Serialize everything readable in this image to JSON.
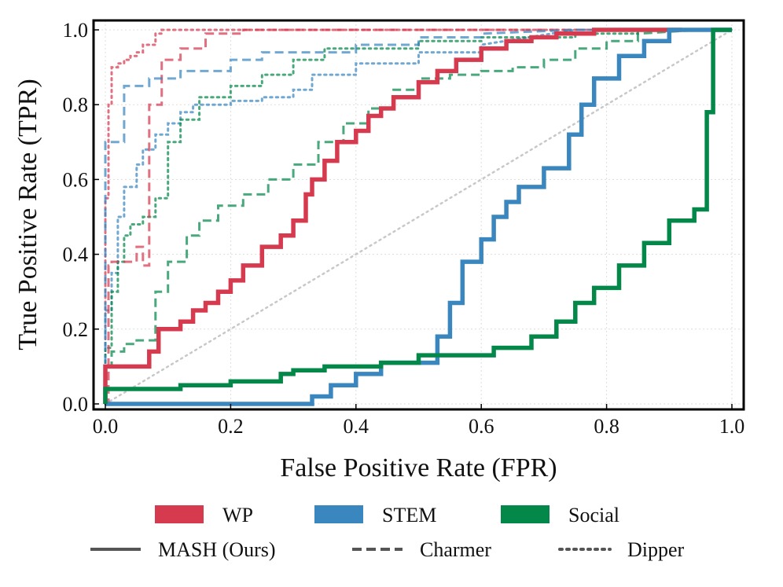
{
  "chart_data": {
    "type": "line",
    "xlabel": "False Positive Rate (FPR)",
    "ylabel": "True Positive Rate (TPR)",
    "xlim": [
      0.0,
      1.0
    ],
    "ylim": [
      0.0,
      1.0
    ],
    "xticks": [
      "0.0",
      "0.2",
      "0.4",
      "0.6",
      "0.8",
      "1.0"
    ],
    "yticks": [
      "0.0",
      "0.2",
      "0.4",
      "0.6",
      "0.8",
      "1.0"
    ],
    "grid": true,
    "legend_position": "bottom",
    "colors": {
      "WP": "#d63a4f",
      "STEM": "#3a87c0",
      "Social": "#04884a",
      "diagonal": "#c8c8c8",
      "linestyle_key": "#555555"
    },
    "legend": {
      "datasets": [
        "WP",
        "STEM",
        "Social"
      ],
      "methods": [
        "MASH (Ours)",
        "Charmer",
        "Dipper"
      ]
    },
    "series": [
      {
        "name": "WP — MASH (Ours)",
        "dataset": "WP",
        "method": "MASH (Ours)",
        "x": [
          0,
          0,
          0.07,
          0.07,
          0.085,
          0.085,
          0.12,
          0.12,
          0.14,
          0.14,
          0.16,
          0.16,
          0.18,
          0.18,
          0.2,
          0.2,
          0.22,
          0.22,
          0.25,
          0.25,
          0.28,
          0.28,
          0.3,
          0.3,
          0.32,
          0.32,
          0.33,
          0.33,
          0.35,
          0.35,
          0.37,
          0.37,
          0.4,
          0.4,
          0.42,
          0.42,
          0.44,
          0.44,
          0.46,
          0.46,
          0.5,
          0.5,
          0.53,
          0.53,
          0.56,
          0.56,
          0.6,
          0.6,
          0.64,
          0.64,
          0.68,
          0.68,
          0.72,
          0.72,
          0.78,
          0.78,
          0.92
        ],
        "y": [
          0,
          0.1,
          0.1,
          0.14,
          0.14,
          0.2,
          0.2,
          0.22,
          0.22,
          0.25,
          0.25,
          0.27,
          0.27,
          0.3,
          0.3,
          0.33,
          0.33,
          0.37,
          0.37,
          0.42,
          0.42,
          0.45,
          0.45,
          0.49,
          0.49,
          0.56,
          0.56,
          0.6,
          0.6,
          0.65,
          0.65,
          0.7,
          0.7,
          0.73,
          0.73,
          0.77,
          0.77,
          0.79,
          0.79,
          0.82,
          0.82,
          0.86,
          0.86,
          0.89,
          0.89,
          0.92,
          0.92,
          0.95,
          0.95,
          0.97,
          0.97,
          0.98,
          0.98,
          0.99,
          0.99,
          1.0,
          1.0
        ]
      },
      {
        "name": "STEM — MASH (Ours)",
        "dataset": "STEM",
        "method": "MASH (Ours)",
        "x": [
          0,
          0.33,
          0.33,
          0.36,
          0.36,
          0.4,
          0.4,
          0.44,
          0.44,
          0.53,
          0.53,
          0.55,
          0.55,
          0.57,
          0.57,
          0.6,
          0.6,
          0.62,
          0.62,
          0.64,
          0.64,
          0.66,
          0.66,
          0.7,
          0.7,
          0.74,
          0.74,
          0.76,
          0.76,
          0.78,
          0.78,
          0.82,
          0.82,
          0.86,
          0.86,
          0.9,
          0.9,
          1.0
        ],
        "y": [
          0,
          0,
          0.02,
          0.02,
          0.05,
          0.05,
          0.08,
          0.08,
          0.11,
          0.11,
          0.18,
          0.18,
          0.27,
          0.27,
          0.38,
          0.38,
          0.44,
          0.44,
          0.5,
          0.5,
          0.54,
          0.54,
          0.58,
          0.58,
          0.63,
          0.63,
          0.72,
          0.72,
          0.8,
          0.8,
          0.87,
          0.87,
          0.93,
          0.93,
          0.97,
          0.97,
          1.0,
          1.0
        ]
      },
      {
        "name": "Social — MASH (Ours)",
        "dataset": "Social",
        "method": "MASH (Ours)",
        "x": [
          0,
          0,
          0.12,
          0.12,
          0.2,
          0.2,
          0.28,
          0.28,
          0.3,
          0.3,
          0.35,
          0.35,
          0.44,
          0.44,
          0.5,
          0.5,
          0.62,
          0.62,
          0.68,
          0.68,
          0.72,
          0.72,
          0.75,
          0.75,
          0.78,
          0.78,
          0.82,
          0.82,
          0.86,
          0.86,
          0.9,
          0.9,
          0.94,
          0.94,
          0.96,
          0.96,
          0.97,
          0.97,
          1.0
        ],
        "y": [
          0,
          0.04,
          0.04,
          0.05,
          0.05,
          0.06,
          0.06,
          0.08,
          0.08,
          0.09,
          0.09,
          0.1,
          0.1,
          0.11,
          0.11,
          0.13,
          0.13,
          0.15,
          0.15,
          0.18,
          0.18,
          0.22,
          0.22,
          0.27,
          0.27,
          0.31,
          0.31,
          0.37,
          0.37,
          0.43,
          0.43,
          0.49,
          0.49,
          0.52,
          0.52,
          0.78,
          0.78,
          1.0,
          1.0
        ]
      },
      {
        "name": "WP — Charmer",
        "dataset": "WP",
        "method": "Charmer",
        "x": [
          0,
          0.005,
          0.005,
          0.01,
          0.01,
          0.025,
          0.025,
          0.05,
          0.05,
          0.06,
          0.06,
          0.07,
          0.07,
          0.09,
          0.09,
          0.12,
          0.12,
          0.16,
          0.16,
          0.22,
          0.22,
          1.0
        ],
        "y": [
          0,
          0,
          0.37,
          0.37,
          0.38,
          0.38,
          0.38,
          0.38,
          0.42,
          0.42,
          0.37,
          0.37,
          0.8,
          0.8,
          0.92,
          0.92,
          0.95,
          0.95,
          0.99,
          0.99,
          1.0,
          1.0
        ]
      },
      {
        "name": "STEM — Charmer",
        "dataset": "STEM",
        "method": "Charmer",
        "x": [
          0,
          0,
          0.03,
          0.03,
          0.07,
          0.07,
          0.12,
          0.12,
          0.2,
          0.2,
          0.25,
          0.25,
          0.4,
          0.4,
          0.5,
          0.5,
          0.6,
          0.6,
          0.75,
          1.0
        ],
        "y": [
          0,
          0.7,
          0.7,
          0.85,
          0.85,
          0.87,
          0.87,
          0.89,
          0.89,
          0.92,
          0.92,
          0.94,
          0.94,
          0.96,
          0.96,
          0.98,
          0.98,
          0.99,
          1.0,
          1.0
        ]
      },
      {
        "name": "Social — Charmer",
        "dataset": "Social",
        "method": "Charmer",
        "x": [
          0,
          0,
          0.01,
          0.01,
          0.03,
          0.03,
          0.05,
          0.05,
          0.08,
          0.08,
          0.1,
          0.1,
          0.13,
          0.13,
          0.15,
          0.15,
          0.18,
          0.18,
          0.22,
          0.22,
          0.26,
          0.26,
          0.3,
          0.3,
          0.34,
          0.34,
          0.38,
          0.38,
          0.42,
          0.42,
          0.46,
          0.46,
          0.5,
          0.5,
          0.55,
          0.55,
          0.6,
          0.6,
          0.65,
          0.65,
          0.7,
          0.7,
          0.75,
          0.75,
          0.8,
          0.8,
          0.85,
          0.85,
          0.95,
          1.0
        ],
        "y": [
          0,
          0.1,
          0.1,
          0.14,
          0.14,
          0.16,
          0.16,
          0.17,
          0.17,
          0.3,
          0.3,
          0.38,
          0.38,
          0.45,
          0.45,
          0.49,
          0.49,
          0.53,
          0.53,
          0.56,
          0.56,
          0.6,
          0.6,
          0.64,
          0.64,
          0.7,
          0.7,
          0.75,
          0.75,
          0.79,
          0.79,
          0.84,
          0.84,
          0.87,
          0.87,
          0.88,
          0.88,
          0.89,
          0.89,
          0.9,
          0.9,
          0.92,
          0.92,
          0.95,
          0.95,
          0.97,
          0.97,
          0.99,
          1.0,
          1.0
        ]
      },
      {
        "name": "WP — Dipper",
        "dataset": "WP",
        "method": "Dipper",
        "x": [
          0,
          0,
          0.005,
          0.005,
          0.01,
          0.01,
          0.02,
          0.02,
          0.03,
          0.03,
          0.04,
          0.04,
          0.05,
          0.05,
          0.06,
          0.06,
          0.08,
          0.08,
          0.09,
          0.09,
          0.12,
          0.12,
          0.16,
          0.16,
          0.2,
          1.0
        ],
        "y": [
          0,
          0.55,
          0.55,
          0.8,
          0.8,
          0.9,
          0.9,
          0.91,
          0.91,
          0.92,
          0.92,
          0.93,
          0.93,
          0.94,
          0.94,
          0.96,
          0.96,
          0.99,
          0.99,
          1.0,
          1.0,
          1.0,
          1.0,
          1.0,
          1.0,
          1.0
        ]
      },
      {
        "name": "STEM — Dipper",
        "dataset": "STEM",
        "method": "Dipper",
        "x": [
          0,
          0,
          0.01,
          0.01,
          0.02,
          0.02,
          0.03,
          0.03,
          0.05,
          0.05,
          0.06,
          0.06,
          0.08,
          0.08,
          0.1,
          0.1,
          0.12,
          0.12,
          0.14,
          0.14,
          0.2,
          0.2,
          0.25,
          0.25,
          0.3,
          0.3,
          0.33,
          0.33,
          0.4,
          0.4,
          0.5,
          0.5,
          0.6,
          0.6,
          0.75,
          1.0
        ],
        "y": [
          0,
          0.25,
          0.25,
          0.35,
          0.35,
          0.5,
          0.5,
          0.58,
          0.58,
          0.64,
          0.64,
          0.68,
          0.68,
          0.72,
          0.72,
          0.75,
          0.75,
          0.78,
          0.78,
          0.8,
          0.8,
          0.81,
          0.81,
          0.82,
          0.82,
          0.84,
          0.84,
          0.88,
          0.88,
          0.91,
          0.91,
          0.94,
          0.94,
          0.96,
          1.0,
          1.0
        ]
      },
      {
        "name": "Social — Dipper",
        "dataset": "Social",
        "method": "Dipper",
        "x": [
          0,
          0,
          0.01,
          0.01,
          0.02,
          0.02,
          0.03,
          0.03,
          0.04,
          0.04,
          0.06,
          0.06,
          0.08,
          0.08,
          0.1,
          0.1,
          0.12,
          0.12,
          0.15,
          0.15,
          0.2,
          0.2,
          0.25,
          0.25,
          0.3,
          0.3,
          0.35,
          0.35,
          0.5,
          0.5,
          0.6,
          0.6,
          0.75,
          0.75,
          0.85,
          0.85,
          1.0
        ],
        "y": [
          0,
          0.15,
          0.15,
          0.3,
          0.3,
          0.38,
          0.38,
          0.45,
          0.45,
          0.48,
          0.48,
          0.5,
          0.5,
          0.55,
          0.55,
          0.7,
          0.7,
          0.76,
          0.76,
          0.82,
          0.82,
          0.85,
          0.85,
          0.88,
          0.88,
          0.92,
          0.92,
          0.95,
          0.95,
          0.97,
          0.97,
          0.98,
          0.98,
          0.99,
          0.99,
          1.0,
          1.0
        ]
      }
    ]
  }
}
